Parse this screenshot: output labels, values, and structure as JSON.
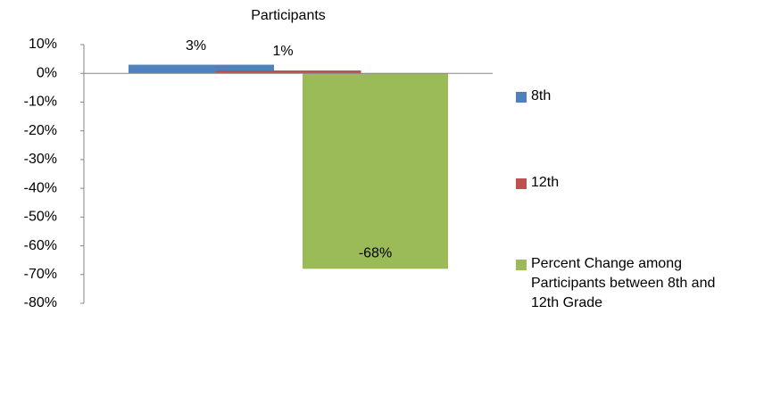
{
  "chart_data": {
    "type": "bar",
    "categories": [
      "Participants"
    ],
    "series": [
      {
        "name": "8th",
        "color": "#4f81bd",
        "values": [
          3
        ],
        "value_labels": [
          "3%"
        ]
      },
      {
        "name": "12th",
        "color": "#c0504d",
        "values": [
          1
        ],
        "value_labels": [
          "1%"
        ]
      },
      {
        "name": "Percent Change among Participants between 8th and 12th Grade",
        "color": "#9bbb59",
        "values": [
          -68
        ],
        "value_labels": [
          "-68%"
        ]
      }
    ],
    "ylim": [
      -80,
      10
    ],
    "yticks": [
      {
        "value": 10,
        "label": "10%"
      },
      {
        "value": 0,
        "label": "0%"
      },
      {
        "value": -10,
        "label": "-10%"
      },
      {
        "value": -20,
        "label": "-20%"
      },
      {
        "value": -30,
        "label": "-30%"
      },
      {
        "value": -40,
        "label": "-40%"
      },
      {
        "value": -50,
        "label": "-50%"
      },
      {
        "value": -60,
        "label": "-60%"
      },
      {
        "value": -70,
        "label": "-70%"
      },
      {
        "value": -80,
        "label": "-80%"
      }
    ],
    "grid": false,
    "legend": "right"
  }
}
